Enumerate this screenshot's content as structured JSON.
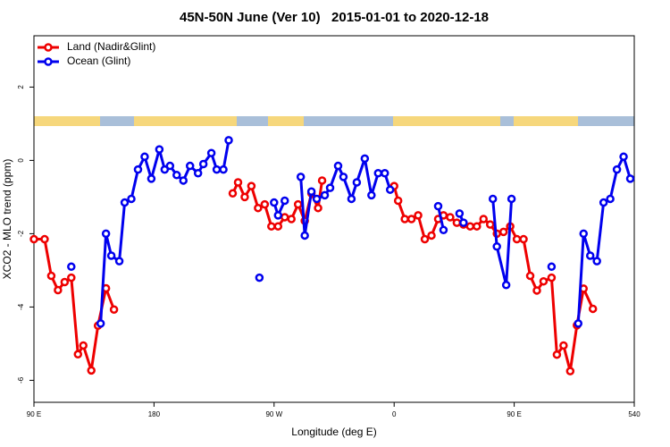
{
  "chart_data": {
    "type": "line",
    "title": "45N-50N June (Ver 10)   2015-01-01 to 2020-12-18",
    "xlabel": "Longitude (deg E)",
    "ylabel": "XCO2 - MLO trend (ppm)",
    "xlim": [
      90,
      540
    ],
    "xticks": [
      {
        "value": 90,
        "label": "90 E"
      },
      180,
      {
        "value": 270,
        "label": "90 W"
      },
      {
        "value": 360,
        "label": "0"
      },
      {
        "value": 450,
        "label": "90 E"
      },
      540
    ],
    "ylim": [
      -6.6,
      3.4
    ],
    "yticks": [
      -6,
      -4,
      -2,
      0,
      2
    ],
    "legend": "top-left",
    "series": [
      {
        "name": "Land (Nadir&Glint)",
        "color": "#ee0000",
        "x": [
          90,
          98,
          103,
          108,
          113,
          118,
          123,
          127,
          133,
          138,
          144,
          150,
          null,
          239,
          243,
          248,
          253,
          258,
          263,
          268,
          273,
          278,
          283,
          288,
          293,
          298,
          303,
          306,
          null,
          360,
          363,
          368,
          373,
          378,
          383,
          388,
          393,
          397,
          402,
          407,
          412,
          417,
          422,
          427,
          432,
          437,
          442,
          447,
          452,
          457,
          462,
          467,
          472,
          478,
          482,
          487,
          492,
          497,
          502,
          509
        ],
        "values": [
          -2.15,
          -2.15,
          -3.15,
          -3.54,
          -3.32,
          -3.2,
          -5.29,
          -5.05,
          -5.73,
          -4.51,
          -3.49,
          -4.07,
          null,
          -0.9,
          -0.6,
          -1.0,
          -0.7,
          -1.3,
          -1.2,
          -1.8,
          -1.8,
          -1.55,
          -1.6,
          -1.2,
          -1.65,
          -0.9,
          -1.3,
          -0.55,
          null,
          -0.7,
          -1.1,
          -1.6,
          -1.6,
          -1.5,
          -2.15,
          -2.05,
          -1.6,
          -1.5,
          -1.55,
          -1.7,
          -1.75,
          -1.8,
          -1.8,
          -1.6,
          -1.75,
          -2.0,
          -1.95,
          -1.8,
          -2.15,
          -2.15,
          -3.15,
          -3.55,
          -3.3,
          -3.2,
          -5.3,
          -5.05,
          -5.75,
          -4.5,
          -3.5,
          -4.05
        ]
      },
      {
        "name": "Ocean (Glint)",
        "color": "#0000ee",
        "x": [
          118,
          null,
          140,
          144,
          148,
          154,
          158,
          163,
          168,
          173,
          178,
          184,
          188,
          192,
          197,
          202,
          207,
          213,
          217,
          223,
          227,
          232,
          236,
          null,
          259,
          null,
          270,
          273,
          278,
          null,
          290,
          293,
          298,
          302,
          308,
          312,
          318,
          322,
          328,
          332,
          338,
          343,
          348,
          353,
          357,
          null,
          393,
          397,
          null,
          409,
          412,
          null,
          434,
          437,
          444,
          448,
          null,
          478,
          null,
          498,
          502,
          507,
          512,
          517,
          522,
          527,
          532,
          537
        ],
        "values": [
          -2.9,
          null,
          -4.45,
          -2.0,
          -2.6,
          -2.75,
          -1.15,
          -1.05,
          -0.25,
          0.1,
          -0.5,
          0.3,
          -0.25,
          -0.15,
          -0.4,
          -0.55,
          -0.15,
          -0.35,
          -0.1,
          0.2,
          -0.25,
          -0.25,
          0.55,
          null,
          -3.2,
          null,
          -1.15,
          -1.5,
          -1.1,
          null,
          -0.45,
          -2.05,
          -0.85,
          -1.05,
          -0.95,
          -0.75,
          -0.15,
          -0.45,
          -1.05,
          -0.6,
          0.05,
          -0.95,
          -0.35,
          -0.35,
          -0.8,
          null,
          -1.25,
          -1.9,
          null,
          -1.45,
          -1.7,
          null,
          -1.05,
          -2.35,
          -3.4,
          -1.05,
          null,
          -2.9,
          null,
          -4.45,
          -2.0,
          -2.6,
          -2.75,
          -1.15,
          -1.05,
          -0.25,
          0.1,
          -0.5
        ]
      }
    ]
  }
}
